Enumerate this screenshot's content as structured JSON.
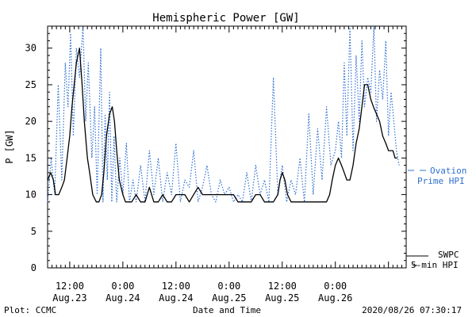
{
  "chart_data": {
    "type": "line",
    "title": "Hemispheric Power [GW]",
    "ylabel": "P [GW]",
    "xlabel": "Date and Time",
    "ylim": [
      0,
      33
    ],
    "xlim": [
      0,
      81
    ],
    "yticks": [
      0,
      5,
      10,
      15,
      20,
      25,
      30
    ],
    "xticks": [
      {
        "x": 5,
        "time": "12:00",
        "date": "Aug.23"
      },
      {
        "x": 17,
        "time": "0:00",
        "date": "Aug.24"
      },
      {
        "x": 29,
        "time": "12:00",
        "date": "Aug.24"
      },
      {
        "x": 41,
        "time": "0:00",
        "date": "Aug.25"
      },
      {
        "x": 53,
        "time": "12:00",
        "date": "Aug.25"
      },
      {
        "x": 65,
        "time": "0:00",
        "date": "Aug.26"
      }
    ],
    "series": [
      {
        "name": "SWPC 5-min HPI",
        "color": "#000000",
        "style": "solid",
        "x": [
          0,
          0.7,
          1.3,
          1.8,
          2.5,
          3.2,
          3.8,
          4.4,
          5,
          5.5,
          6,
          6.5,
          7.2,
          7.8,
          8.3,
          9,
          9.5,
          10.2,
          11,
          11.6,
          12.2,
          12.7,
          13.3,
          14,
          14.6,
          15.1,
          15.6,
          16.2,
          17,
          17.6,
          18.1,
          19,
          20,
          21,
          22,
          23,
          24,
          25,
          26,
          27,
          28,
          29,
          30,
          31,
          32,
          33,
          34,
          35,
          36,
          37,
          38,
          39,
          40,
          41,
          42,
          43,
          44,
          45,
          46,
          47,
          48,
          49,
          50,
          51,
          52,
          52.5,
          53,
          53.6,
          54.2,
          55,
          56,
          57,
          58,
          59,
          60,
          61,
          62,
          63,
          63.7,
          64.3,
          65,
          65.7,
          66.4,
          67,
          67.6,
          68.3,
          69,
          69.7,
          70.4,
          71,
          71.6,
          72.3,
          73,
          73.6,
          74.3,
          75,
          75.7,
          76.4,
          77,
          77.5,
          78,
          78.5,
          79
        ],
        "y": [
          12,
          13,
          12,
          10,
          10,
          11,
          12,
          15,
          18,
          22,
          25,
          28,
          30,
          25,
          20,
          15,
          13,
          10,
          9,
          9,
          10,
          13,
          18,
          21,
          22,
          20,
          16,
          12,
          10,
          9,
          9,
          9,
          10,
          9,
          9,
          11,
          9,
          9,
          10,
          9,
          9,
          10,
          10,
          10,
          9,
          10,
          11,
          10,
          10,
          10,
          10,
          10,
          10,
          10,
          10,
          9,
          9,
          9,
          9,
          10,
          10,
          9,
          9,
          9,
          10,
          12,
          13,
          12,
          10,
          9,
          9,
          9,
          9,
          9,
          9,
          9,
          9,
          9,
          10,
          12,
          14,
          15,
          14,
          13,
          12,
          12,
          14,
          17,
          19,
          22,
          25,
          25,
          23,
          22,
          21,
          20,
          18,
          17,
          16,
          16,
          16,
          15,
          15
        ]
      },
      {
        "name": "Ovation Prime HPI",
        "color": "#2f6fd0",
        "style": "dotted",
        "x": [
          0,
          0.8,
          1.6,
          2.4,
          3.2,
          4,
          4.6,
          5.2,
          5.8,
          6.5,
          7.2,
          8,
          8.6,
          9.2,
          10,
          10.6,
          11.2,
          12,
          12.5,
          13,
          13.5,
          14,
          14.5,
          15,
          15.6,
          16.3,
          17,
          17.8,
          18.5,
          19.3,
          20,
          21,
          22,
          23,
          24,
          25,
          26,
          27,
          28,
          29,
          30,
          31,
          32,
          33,
          34,
          35,
          36,
          37,
          38,
          39,
          40,
          41,
          42,
          43,
          44,
          45,
          46,
          47,
          48,
          49,
          50,
          51,
          52,
          53,
          54,
          55,
          56,
          57,
          58,
          59,
          60,
          61,
          62,
          63,
          64,
          65,
          65.7,
          66.4,
          67,
          67.6,
          68.3,
          69,
          69.7,
          70.4,
          71,
          71.6,
          72.3,
          73,
          73.7,
          74.3,
          75,
          75.7,
          76.4,
          77,
          77.6,
          78.2,
          78.8,
          79.4
        ],
        "y": [
          9,
          15,
          10,
          25,
          12,
          28,
          22,
          32,
          18,
          30,
          26,
          33,
          20,
          28,
          15,
          22,
          10,
          30,
          9,
          21,
          12,
          24,
          9,
          18,
          9,
          15,
          10,
          17,
          9,
          12,
          9,
          14,
          9,
          16,
          10,
          15,
          9,
          13,
          10,
          17,
          9,
          12,
          11,
          16,
          9,
          11,
          14,
          10,
          9,
          12,
          10,
          11,
          9,
          10,
          9,
          13,
          9,
          14,
          10,
          12,
          9,
          26,
          10,
          14,
          9,
          12,
          10,
          15,
          9,
          21,
          10,
          19,
          12,
          22,
          14,
          16,
          20,
          15,
          28,
          18,
          33,
          16,
          29,
          20,
          31,
          22,
          26,
          24,
          33,
          20,
          27,
          23,
          31,
          18,
          24,
          20,
          16,
          14
        ]
      }
    ],
    "annotations": {
      "ovation_line1": "Ovation",
      "ovation_line2": "Prime HPI",
      "swpc_line1": "SWPC",
      "swpc_line2": "5-min HPI"
    },
    "footer_left": "Plot: CCMC",
    "footer_right": "2020/08/26 07:30:17"
  }
}
